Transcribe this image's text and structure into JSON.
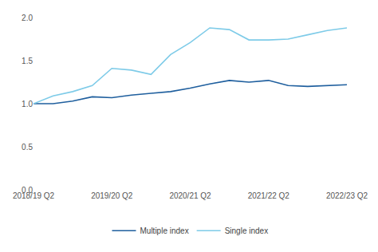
{
  "chart_data": {
    "type": "line",
    "categories": [
      "2018/19 Q2",
      null,
      null,
      null,
      "2019/20 Q2",
      null,
      null,
      null,
      "2020/21 Q2",
      null,
      null,
      null,
      "2021/22 Q2",
      null,
      null,
      null,
      "2022/23 Q2"
    ],
    "series": [
      {
        "name": "Multiple index",
        "color": "#1f5f9e",
        "values": [
          1.0,
          1.0,
          1.03,
          1.08,
          1.07,
          1.1,
          1.12,
          1.14,
          1.18,
          1.23,
          1.27,
          1.25,
          1.27,
          1.21,
          1.2,
          1.21,
          1.22
        ]
      },
      {
        "name": "Single index",
        "color": "#7ecbe8",
        "values": [
          1.0,
          1.09,
          1.14,
          1.21,
          1.41,
          1.39,
          1.34,
          1.57,
          1.71,
          1.88,
          1.86,
          1.74,
          1.74,
          1.75,
          1.8,
          1.85,
          1.88
        ]
      }
    ],
    "ylim": [
      0,
      2
    ],
    "yticks": [
      {
        "value": 0,
        "label": "0.0"
      },
      0.5,
      {
        "value": 1,
        "label": "1.0"
      },
      1.5,
      {
        "value": 2,
        "label": "2.0"
      }
    ],
    "grid": false,
    "legend": "bottom"
  }
}
